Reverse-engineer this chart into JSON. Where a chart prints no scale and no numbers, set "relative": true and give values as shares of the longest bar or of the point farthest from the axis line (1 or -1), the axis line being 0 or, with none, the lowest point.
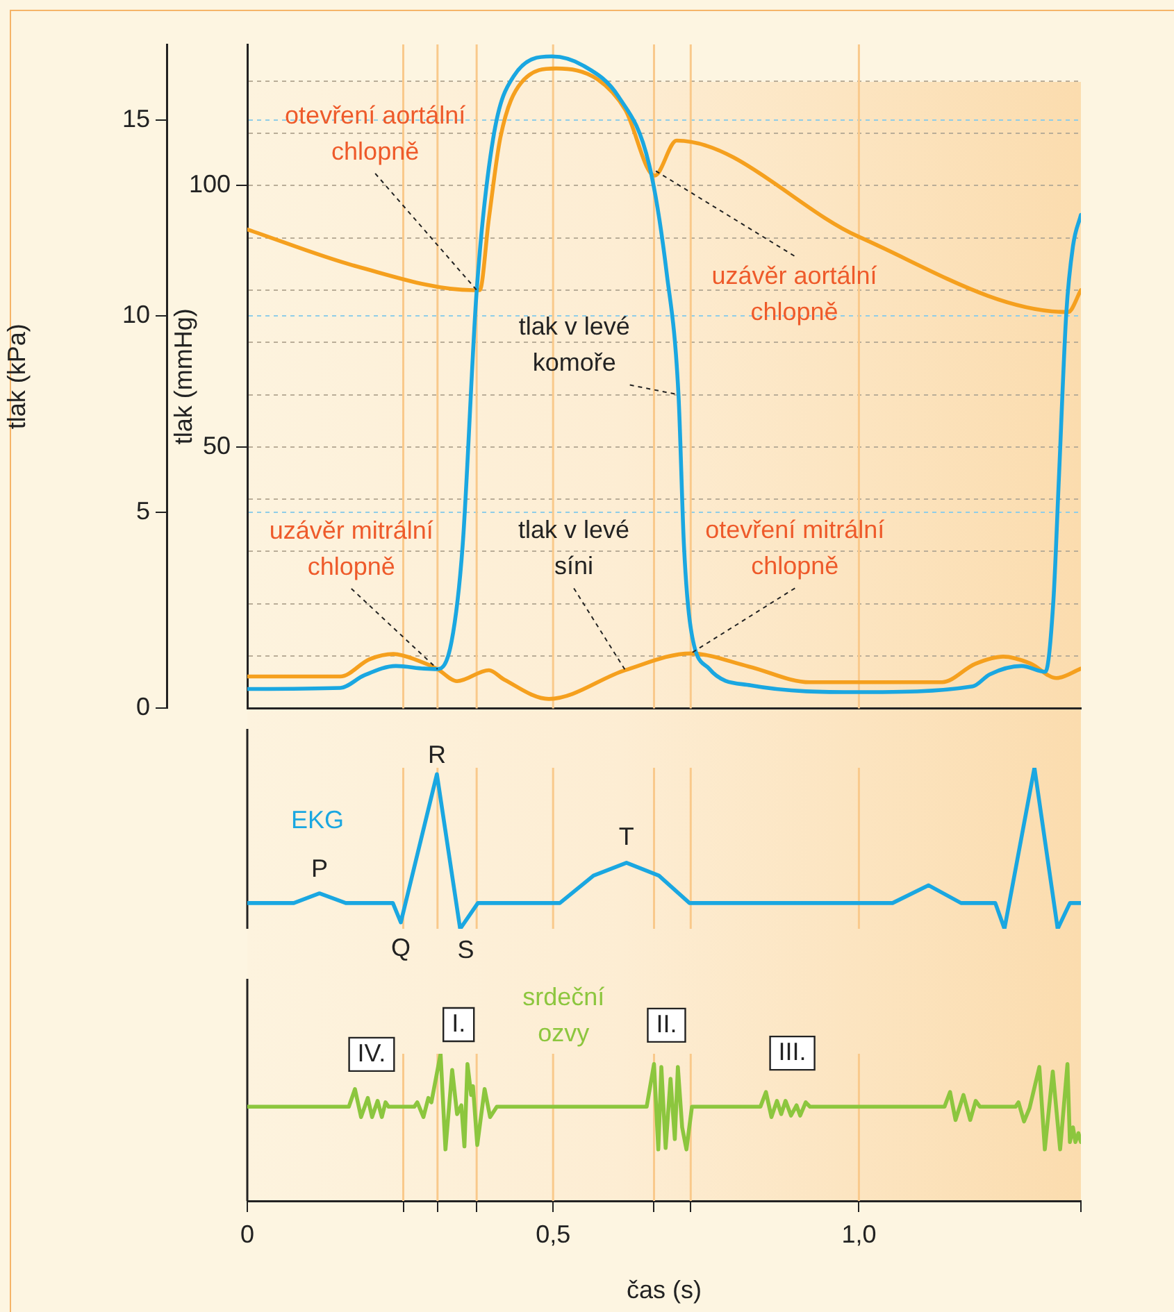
{
  "chart_data": [
    {
      "type": "line",
      "ylabel": "tlak (mmHg)",
      "y2label": "tlak (kPa)",
      "xlim": [
        0,
        1.363
      ],
      "ylim": [
        0,
        127
      ],
      "y2lim": [
        0,
        16.93
      ],
      "yticks": [
        {
          "value": 0,
          "label": null
        },
        {
          "value": 10,
          "label": null
        },
        {
          "value": 20,
          "label": null
        },
        {
          "value": 30,
          "label": null
        },
        {
          "value": 40,
          "label": null
        },
        50,
        {
          "value": 60,
          "label": null
        },
        {
          "value": 70,
          "label": null
        },
        {
          "value": 80,
          "label": null
        },
        {
          "value": 90,
          "label": null
        },
        100,
        {
          "value": 110,
          "label": null
        },
        {
          "value": 120,
          "label": null
        }
      ],
      "y2ticks": [
        0,
        5,
        10,
        15
      ],
      "grid": "y",
      "tick_labels": "y",
      "series": [
        {
          "name": "tlak v levé komoře",
          "color": "#1aa7e1",
          "x": [
            0,
            0.152,
            0.191,
            0.243,
            0.289,
            0.311,
            0.334,
            0.352,
            0.375,
            0.402,
            0.436,
            0.498,
            0.55,
            0.607,
            0.657,
            0.686,
            0.705,
            0.714,
            0.725,
            0.755,
            0.823,
            1.005,
            1.186,
            1.214,
            1.266,
            1.305,
            1.318,
            1.327,
            1.339,
            1.35,
            1.363
          ],
          "values": [
            3.7,
            3.9,
            6.3,
            8.1,
            7.6,
            7.5,
            12.8,
            31,
            79.8,
            109,
            121,
            124.7,
            122.9,
            117,
            104,
            83,
            60,
            31,
            15.4,
            7.6,
            4.4,
            3.1,
            4.2,
            6.5,
            8.1,
            7,
            20.6,
            44,
            75.4,
            88.4,
            94.4
          ]
        },
        {
          "name": "tlak v levé síni",
          "color": "#f5a01e",
          "x": [
            0,
            0.152,
            0.2,
            0.239,
            0.28,
            0.311,
            0.343,
            0.395,
            0.42,
            0.493,
            0.618,
            0.725,
            0.82,
            0.92,
            1.136,
            1.19,
            1.236,
            1.28,
            1.323,
            1.363
          ],
          "values": [
            6.1,
            6.1,
            9.4,
            10.4,
            9.1,
            7.5,
            5.2,
            7.3,
            5.5,
            1.8,
            7.3,
            10.5,
            8,
            5,
            5,
            8.5,
            9.9,
            8.6,
            5.8,
            7.6
          ]
        },
        {
          "color": "#f5a01e",
          "x": [
            0,
            0.18,
            0.369,
            0.38,
            0.395,
            0.414,
            0.448,
            0.505,
            0.573,
            0.618,
            0.666,
            0.702,
            1.0,
            1.342,
            1.363
          ],
          "values": [
            91.6,
            84.5,
            80,
            80,
            93.7,
            109.3,
            119.7,
            122.4,
            120.3,
            114.5,
            101.9,
            108.6,
            90.2,
            75.8,
            80
          ]
        }
      ],
      "ref_lines": [
        {
          "axis": "x",
          "value": 0.255,
          "color": "#f9c98b"
        },
        {
          "axis": "x",
          "value": 0.311,
          "color": "#f9c98b"
        },
        {
          "axis": "x",
          "value": 0.375,
          "color": "#f9c98b"
        },
        {
          "axis": "x",
          "value": 0.5,
          "color": "#f9c98b"
        },
        {
          "axis": "x",
          "value": 0.665,
          "color": "#f9c98b"
        },
        {
          "axis": "x",
          "value": 0.725,
          "color": "#f9c98b"
        },
        {
          "axis": "x",
          "value": 1.0,
          "color": "#f9c98b"
        }
      ],
      "annotations": [
        {
          "text": "otevření aortální chlopně",
          "x": 0.375,
          "y": 80
        },
        {
          "text": "uzávěr aortální chlopně",
          "x": 0.665,
          "y": 103
        },
        {
          "text": "uzávěr mitrální chlopně",
          "x": 0.311,
          "y": 7.5
        },
        {
          "text": "otevření mitrální chlopně",
          "x": 0.725,
          "y": 10.5
        }
      ]
    },
    {
      "type": "line",
      "relative": true,
      "xlim": [
        0,
        1.363
      ],
      "tick_labels": false,
      "series": [
        {
          "name": "EKG",
          "color": "#1aa7e1",
          "x": [
            0,
            0.076,
            0.118,
            0.161,
            0.238,
            0.251,
            0.31,
            0.348,
            0.377,
            0.511,
            0.566,
            0.62,
            0.673,
            0.723,
            1.055,
            1.114,
            1.167,
            1.223,
            1.238,
            1.287,
            1.325,
            1.345,
            1.363
          ],
          "values": [
            0.16,
            0.16,
            0.22,
            0.16,
            0.16,
            0.04,
            0.96,
            0,
            0.16,
            0.16,
            0.33,
            0.41,
            0.33,
            0.16,
            0.16,
            0.27,
            0.16,
            0.16,
            0,
            1,
            0,
            0.16,
            0.16
          ]
        }
      ],
      "ref_lines": [
        {
          "axis": "x",
          "value": 0.255,
          "color": "#f9c98b"
        },
        {
          "axis": "x",
          "value": 0.311,
          "color": "#f9c98b"
        },
        {
          "axis": "x",
          "value": 0.375,
          "color": "#f9c98b"
        },
        {
          "axis": "x",
          "value": 0.5,
          "color": "#f9c98b"
        },
        {
          "axis": "x",
          "value": 0.665,
          "color": "#f9c98b"
        },
        {
          "axis": "x",
          "value": 0.725,
          "color": "#f9c98b"
        },
        {
          "axis": "x",
          "value": 1.0,
          "color": "#f9c98b"
        }
      ],
      "annotations": [
        {
          "text": "P",
          "x": 0.118,
          "y": 0.22
        },
        {
          "text": "Q",
          "x": 0.251,
          "y": 0.04
        },
        {
          "text": "R",
          "x": 0.31,
          "y": 0.96
        },
        {
          "text": "S",
          "x": 0.348,
          "y": 0
        },
        {
          "text": "T",
          "x": 0.62,
          "y": 0.41
        }
      ]
    },
    {
      "type": "line",
      "relative": true,
      "xlabel": "čas (s)",
      "xlim": [
        0,
        1.363
      ],
      "tick_labels": "x",
      "xticks": [
        0,
        {
          "value": 0.255,
          "label": null
        },
        {
          "value": 0.311,
          "label": null
        },
        {
          "value": 0.375,
          "label": null
        },
        {
          "value": 0.5,
          "label": "0,5"
        },
        {
          "value": 0.665,
          "label": null
        },
        {
          "value": 0.725,
          "label": null
        },
        {
          "value": 1.0,
          "label": "1,0"
        },
        {
          "value": 1.363,
          "label": null
        }
      ],
      "series": [
        {
          "name": "srdeční ozvy",
          "color": "#8cc63e",
          "x": [
            0,
            0.166,
            0.176,
            0.186,
            0.197,
            0.204,
            0.213,
            0.22,
            0.226,
            0.231,
            0.273,
            0.278,
            0.288,
            0.296,
            0.301,
            0.316,
            0.324,
            0.335,
            0.343,
            0.35,
            0.355,
            0.36,
            0.366,
            0.369,
            0.376,
            0.388,
            0.397,
            0.408,
            0.653,
            0.665,
            0.672,
            0.677,
            0.684,
            0.692,
            0.699,
            0.704,
            0.711,
            0.718,
            0.727,
            0.839,
            0.848,
            0.857,
            0.866,
            0.873,
            0.88,
            0.889,
            0.898,
            0.904,
            0.913,
            0.92,
            1.14,
            1.149,
            1.158,
            1.171,
            1.182,
            1.191,
            1.198,
            1.256,
            1.261,
            1.27,
            1.279,
            1.295,
            1.304,
            1.317,
            1.329,
            1.341,
            1.345,
            1.35,
            1.354,
            1.359,
            1.363
          ],
          "values": [
            0.64,
            0.64,
            0.76,
            0.57,
            0.7,
            0.57,
            0.68,
            0.57,
            0.67,
            0.64,
            0.64,
            0.67,
            0.57,
            0.7,
            0.67,
            1,
            0.35,
            0.89,
            0.59,
            0.65,
            0.37,
            0.93,
            0.72,
            0.78,
            0.38,
            0.76,
            0.57,
            0.64,
            0.64,
            0.93,
            0.35,
            0.91,
            0.36,
            0.83,
            0.42,
            0.91,
            0.5,
            0.35,
            0.64,
            0.64,
            0.74,
            0.57,
            0.68,
            0.59,
            0.68,
            0.58,
            0.65,
            0.58,
            0.67,
            0.64,
            0.64,
            0.74,
            0.55,
            0.72,
            0.55,
            0.68,
            0.64,
            0.64,
            0.67,
            0.54,
            0.63,
            0.91,
            0.35,
            0.88,
            0.35,
            0.93,
            0.4,
            0.5,
            0.4,
            0.46,
            0.4
          ]
        }
      ],
      "ref_lines": [
        {
          "axis": "x",
          "value": 0.255,
          "color": "#f9c98b"
        },
        {
          "axis": "x",
          "value": 0.311,
          "color": "#f9c98b"
        },
        {
          "axis": "x",
          "value": 0.375,
          "color": "#f9c98b"
        },
        {
          "axis": "x",
          "value": 0.5,
          "color": "#f9c98b"
        },
        {
          "axis": "x",
          "value": 0.665,
          "color": "#f9c98b"
        },
        {
          "axis": "x",
          "value": 0.725,
          "color": "#f9c98b"
        },
        {
          "axis": "x",
          "value": 1.0,
          "color": "#f9c98b"
        }
      ],
      "annotations": [
        {
          "text": "IV.",
          "x": 0.176,
          "y": 0.76
        },
        {
          "text": "I.",
          "x": 0.316,
          "y": 1
        },
        {
          "text": "II.",
          "x": 0.665,
          "y": 0.93
        },
        {
          "text": "III.",
          "x": 0.848,
          "y": 0.74
        }
      ]
    }
  ]
}
